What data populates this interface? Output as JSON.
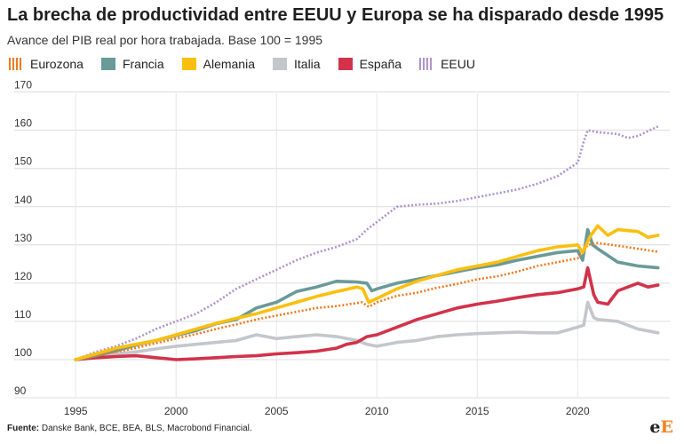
{
  "header": {
    "title": "La brecha de productividad entre EEUU y Europa se ha disparado desde 1995",
    "subtitle": "Avance del PIB real por hora trabajada. Base 100 = 1995"
  },
  "footer": {
    "source_label": "Fuente:",
    "source_text": "Danske Bank, BCE, BEA, BLS, Macrobond Financial."
  },
  "logo": {
    "letter1": "e",
    "letter2": "E"
  },
  "chart_data": {
    "type": "line",
    "title": "La brecha de productividad entre EEUU y Europa se ha disparado desde 1995",
    "subtitle": "Avance del PIB real por hora trabajada. Base 100 = 1995",
    "xlabel": "",
    "ylabel": "",
    "xlim": [
      1993,
      2024.5
    ],
    "ylim": [
      90,
      172
    ],
    "x_ticks": [
      1995,
      2000,
      2005,
      2010,
      2015,
      2020
    ],
    "y_ticks": [
      90,
      100,
      110,
      120,
      130,
      140,
      150,
      160,
      170
    ],
    "grid": "horizontal",
    "legend_position": "top",
    "series": [
      {
        "name": "Eurozona",
        "color": "#f07a20",
        "style": "dotted",
        "points": [
          [
            1995,
            100
          ],
          [
            1996,
            101
          ],
          [
            1997,
            102
          ],
          [
            1998,
            103
          ],
          [
            1999,
            104.3
          ],
          [
            2000,
            105.5
          ],
          [
            2001,
            106.7
          ],
          [
            2002,
            108
          ],
          [
            2003,
            109.2
          ],
          [
            2004,
            110.5
          ],
          [
            2005,
            111.5
          ],
          [
            2006,
            112.5
          ],
          [
            2007,
            113.5
          ],
          [
            2008,
            114
          ],
          [
            2009.25,
            115
          ],
          [
            2009.6,
            113.8
          ],
          [
            2010,
            115
          ],
          [
            2011,
            116.7
          ],
          [
            2012,
            117.5
          ],
          [
            2013,
            118.8
          ],
          [
            2014,
            119.8
          ],
          [
            2015,
            121
          ],
          [
            2016,
            121.8
          ],
          [
            2017,
            123
          ],
          [
            2018,
            124.5
          ],
          [
            2019,
            125.5
          ],
          [
            2020,
            126.5
          ],
          [
            2020.25,
            128
          ],
          [
            2020.5,
            130
          ],
          [
            2021,
            130.5
          ],
          [
            2022,
            129.8
          ],
          [
            2023,
            129
          ],
          [
            2024,
            128.2
          ]
        ]
      },
      {
        "name": "Francia",
        "color": "#6a9a98",
        "style": "solid",
        "points": [
          [
            1995,
            100
          ],
          [
            1996,
            101
          ],
          [
            1997,
            102.3
          ],
          [
            1998,
            103.8
          ],
          [
            1999,
            105
          ],
          [
            2000,
            106.3
          ],
          [
            2001,
            107.6
          ],
          [
            2002,
            109.4
          ],
          [
            2003,
            110.5
          ],
          [
            2004,
            113.5
          ],
          [
            2005,
            115
          ],
          [
            2006,
            117.8
          ],
          [
            2007,
            119
          ],
          [
            2008,
            120.5
          ],
          [
            2009,
            120.3
          ],
          [
            2009.5,
            120
          ],
          [
            2009.75,
            118
          ],
          [
            2010,
            118.5
          ],
          [
            2011,
            120
          ],
          [
            2012,
            121
          ],
          [
            2013,
            122
          ],
          [
            2014,
            123
          ],
          [
            2015,
            124
          ],
          [
            2016,
            124.8
          ],
          [
            2017,
            126
          ],
          [
            2018,
            127
          ],
          [
            2019,
            128
          ],
          [
            2020,
            128.5
          ],
          [
            2020.25,
            126
          ],
          [
            2020.5,
            134
          ],
          [
            2020.75,
            130
          ],
          [
            2021,
            129
          ],
          [
            2022,
            125.5
          ],
          [
            2023,
            124.5
          ],
          [
            2024,
            124
          ]
        ]
      },
      {
        "name": "Alemania",
        "color": "#fbbf0f",
        "style": "solid",
        "points": [
          [
            1995,
            100
          ],
          [
            1996,
            101.5
          ],
          [
            1997,
            103
          ],
          [
            1998,
            104
          ],
          [
            1999,
            105
          ],
          [
            2000,
            106.5
          ],
          [
            2001,
            108
          ],
          [
            2002,
            109.5
          ],
          [
            2003,
            110.8
          ],
          [
            2004,
            112
          ],
          [
            2005,
            113.5
          ],
          [
            2006,
            115
          ],
          [
            2007,
            116.5
          ],
          [
            2008,
            117.8
          ],
          [
            2009,
            119
          ],
          [
            2009.3,
            118.5
          ],
          [
            2009.6,
            115
          ],
          [
            2010,
            116
          ],
          [
            2011,
            118.5
          ],
          [
            2012,
            120.5
          ],
          [
            2013,
            122
          ],
          [
            2014,
            123.5
          ],
          [
            2015,
            124.5
          ],
          [
            2016,
            125.5
          ],
          [
            2017,
            127
          ],
          [
            2018,
            128.5
          ],
          [
            2019,
            129.5
          ],
          [
            2020,
            130
          ],
          [
            2020.25,
            128
          ],
          [
            2020.6,
            132
          ],
          [
            2021,
            135
          ],
          [
            2021.5,
            132.5
          ],
          [
            2022,
            134
          ],
          [
            2023,
            133.5
          ],
          [
            2023.5,
            132
          ],
          [
            2024,
            132.5
          ]
        ]
      },
      {
        "name": "Italia",
        "color": "#c3c7cc",
        "style": "solid",
        "points": [
          [
            1995,
            100
          ],
          [
            1996,
            100.5
          ],
          [
            1997,
            101.5
          ],
          [
            1998,
            102
          ],
          [
            1999,
            102.8
          ],
          [
            2000,
            103.5
          ],
          [
            2001,
            104
          ],
          [
            2002,
            104.5
          ],
          [
            2003,
            105
          ],
          [
            2004,
            106.5
          ],
          [
            2005,
            105.5
          ],
          [
            2006,
            106
          ],
          [
            2007,
            106.5
          ],
          [
            2008,
            106
          ],
          [
            2009,
            105
          ],
          [
            2009.5,
            104
          ],
          [
            2010,
            103.5
          ],
          [
            2011,
            104.5
          ],
          [
            2012,
            105
          ],
          [
            2013,
            106
          ],
          [
            2014,
            106.5
          ],
          [
            2015,
            106.8
          ],
          [
            2016,
            107
          ],
          [
            2017,
            107.2
          ],
          [
            2018,
            107
          ],
          [
            2019,
            107
          ],
          [
            2020,
            108.5
          ],
          [
            2020.3,
            109
          ],
          [
            2020.5,
            115
          ],
          [
            2020.8,
            111
          ],
          [
            2021,
            110.5
          ],
          [
            2022,
            110
          ],
          [
            2023,
            108
          ],
          [
            2024,
            107
          ]
        ]
      },
      {
        "name": "España",
        "color": "#d2324a",
        "style": "solid",
        "points": [
          [
            1995,
            100
          ],
          [
            1996,
            100.5
          ],
          [
            1997,
            100.8
          ],
          [
            1998,
            101
          ],
          [
            1999,
            100.5
          ],
          [
            2000,
            100
          ],
          [
            2001,
            100.2
          ],
          [
            2002,
            100.5
          ],
          [
            2003,
            100.8
          ],
          [
            2004,
            101
          ],
          [
            2005,
            101.5
          ],
          [
            2006,
            101.8
          ],
          [
            2007,
            102.2
          ],
          [
            2008,
            103
          ],
          [
            2008.5,
            104
          ],
          [
            2009,
            104.5
          ],
          [
            2009.5,
            106
          ],
          [
            2010,
            106.5
          ],
          [
            2011,
            108.5
          ],
          [
            2012,
            110.5
          ],
          [
            2013,
            112
          ],
          [
            2014,
            113.5
          ],
          [
            2015,
            114.5
          ],
          [
            2016,
            115.3
          ],
          [
            2017,
            116.2
          ],
          [
            2018,
            117
          ],
          [
            2019,
            117.5
          ],
          [
            2020,
            118.5
          ],
          [
            2020.3,
            119
          ],
          [
            2020.5,
            124
          ],
          [
            2020.8,
            117
          ],
          [
            2021,
            115
          ],
          [
            2021.5,
            114.5
          ],
          [
            2022,
            118
          ],
          [
            2023,
            120
          ],
          [
            2023.5,
            119
          ],
          [
            2024,
            119.5
          ]
        ]
      },
      {
        "name": "EEUU",
        "color": "#ad93cf",
        "style": "dotted",
        "points": [
          [
            1995,
            100
          ],
          [
            1996,
            102
          ],
          [
            1997,
            103.5
          ],
          [
            1998,
            105.5
          ],
          [
            1999,
            108
          ],
          [
            2000,
            110
          ],
          [
            2001,
            112
          ],
          [
            2002,
            115
          ],
          [
            2003,
            118.5
          ],
          [
            2004,
            121
          ],
          [
            2005,
            123.5
          ],
          [
            2006,
            126
          ],
          [
            2007,
            128
          ],
          [
            2008,
            129.5
          ],
          [
            2009,
            131.5
          ],
          [
            2009.5,
            134
          ],
          [
            2010,
            136
          ],
          [
            2011,
            140
          ],
          [
            2012,
            140.5
          ],
          [
            2013,
            140.8
          ],
          [
            2014,
            141.5
          ],
          [
            2015,
            142.5
          ],
          [
            2016,
            143.5
          ],
          [
            2017,
            144.5
          ],
          [
            2018,
            146
          ],
          [
            2019,
            148
          ],
          [
            2020,
            151.5
          ],
          [
            2020.3,
            157
          ],
          [
            2020.5,
            160
          ],
          [
            2021,
            159.5
          ],
          [
            2022,
            159
          ],
          [
            2022.5,
            158
          ],
          [
            2023,
            158.5
          ],
          [
            2024,
            161
          ]
        ]
      }
    ]
  }
}
